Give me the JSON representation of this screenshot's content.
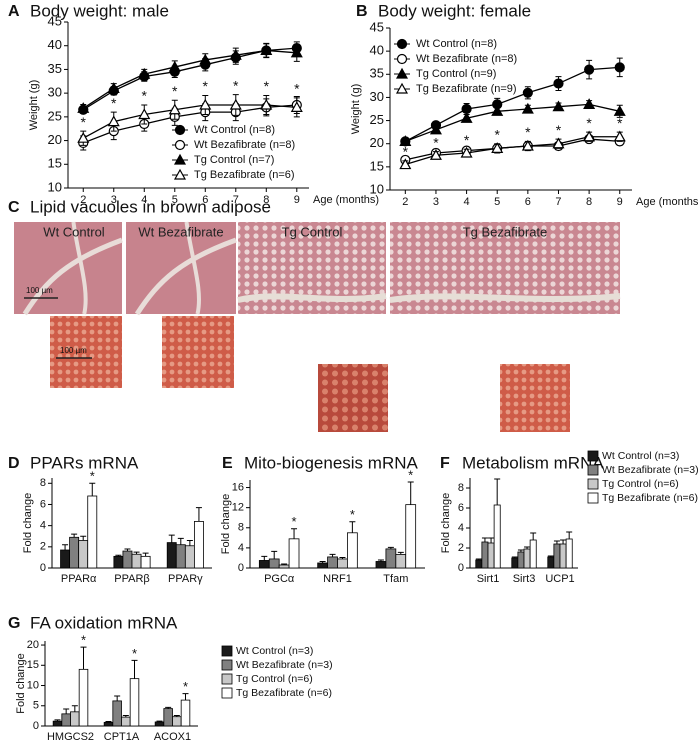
{
  "chart_data": [
    {
      "label": "A",
      "type": "line",
      "title": "Body weight: male",
      "ylabel": "Weight (g)",
      "xlabel": "Age (months)",
      "x": [
        2,
        3,
        4,
        5,
        6,
        7,
        8,
        9
      ],
      "xlim": [
        1.5,
        9.4
      ],
      "xticks": [
        2,
        3,
        4,
        5,
        6,
        7,
        8,
        9
      ],
      "ylim": [
        10,
        45
      ],
      "yticks": [
        10,
        15,
        20,
        25,
        30,
        35,
        40,
        45
      ],
      "legend": "lower right",
      "series": [
        {
          "name": "Wt Control (n=8)",
          "color": "#000000",
          "marker": "circle",
          "filled": true,
          "values": [
            26.5,
            30.5,
            33.5,
            34.5,
            36,
            37.5,
            39,
            39.5
          ],
          "errors": [
            0.8,
            0.9,
            1,
            1.2,
            1.3,
            1.4,
            1.4,
            1.3
          ]
        },
        {
          "name": "Wt Bezafibrate (n=8)",
          "color": "#000000",
          "marker": "circle",
          "filled": false,
          "values": [
            19.5,
            22,
            23.5,
            25,
            26,
            26,
            27,
            27.5
          ],
          "errors": [
            1.5,
            1.8,
            1.5,
            1.8,
            1.8,
            1.8,
            1.8,
            1.8
          ]
        },
        {
          "name": "Tg Control (n=7)",
          "color": "#000000",
          "marker": "triangle",
          "filled": true,
          "values": [
            26.8,
            31,
            34,
            35.5,
            37,
            38,
            39,
            38.5
          ],
          "errors": [
            0.8,
            1,
            1,
            1.3,
            1.3,
            1.5,
            1.5,
            1.8
          ]
        },
        {
          "name": "Tg Bezafibrate (n=6)",
          "color": "#000000",
          "marker": "triangle",
          "filled": false,
          "values": [
            20.5,
            24,
            25.5,
            26.5,
            27.5,
            27.5,
            27.5,
            27
          ],
          "errors": [
            1.5,
            2,
            2,
            2,
            2,
            2.2,
            2,
            2
          ],
          "annotations": [
            "*",
            "*",
            "*",
            "*",
            "*",
            "*",
            "*",
            "*"
          ]
        }
      ]
    },
    {
      "label": "B",
      "type": "line",
      "title": "Body weight: female",
      "ylabel": "Weight (g)",
      "xlabel": "Age (months)",
      "x": [
        2,
        3,
        4,
        5,
        6,
        7,
        8,
        9
      ],
      "xlim": [
        1.5,
        9.4
      ],
      "xticks": [
        2,
        3,
        4,
        5,
        6,
        7,
        8,
        9
      ],
      "ylim": [
        10,
        45
      ],
      "yticks": [
        10,
        15,
        20,
        25,
        30,
        35,
        40,
        45
      ],
      "legend": "upper left",
      "series": [
        {
          "name": "Wt Control (n=8)",
          "color": "#000000",
          "marker": "circle",
          "filled": true,
          "values": [
            20.5,
            24,
            27.5,
            28.5,
            31,
            33,
            36,
            36.5
          ],
          "errors": [
            0.5,
            0.7,
            1.2,
            1.3,
            1.3,
            1.5,
            2,
            2
          ]
        },
        {
          "name": "Wt Bezafibrate (n=8)",
          "color": "#000000",
          "marker": "circle",
          "filled": false,
          "values": [
            16.5,
            18,
            18.5,
            19,
            19.5,
            19.5,
            21,
            20.5
          ],
          "errors": [
            0.8,
            0.8,
            0.8,
            0.8,
            0.8,
            0.8,
            0.8,
            0.8
          ]
        },
        {
          "name": "Tg Control (n=9)",
          "color": "#000000",
          "marker": "triangle",
          "filled": true,
          "values": [
            20.5,
            23,
            25.5,
            27,
            27.5,
            28,
            28.5,
            27
          ],
          "errors": [
            0.5,
            0.6,
            0.8,
            0.8,
            0.8,
            0.8,
            0.8,
            1.3
          ]
        },
        {
          "name": "Tg Bezafibrate (n=9)",
          "color": "#000000",
          "marker": "triangle",
          "filled": false,
          "values": [
            15.5,
            17.5,
            18,
            19,
            19.5,
            20,
            21.5,
            21.5
          ],
          "errors": [
            0.8,
            0.8,
            0.8,
            1,
            1,
            1,
            1,
            1
          ],
          "annotations": [
            "*",
            "*",
            "*",
            "*",
            "*",
            "*",
            "*",
            "*"
          ]
        }
      ]
    },
    {
      "label": "C",
      "type": "micrograph",
      "title": "Lipid vacuoles in brown adipose",
      "panels": [
        "Wt Control",
        "Wt Bezafibrate",
        "Tg Control",
        "Tg Bezafibrate"
      ],
      "scale_label": "100 µm"
    },
    {
      "label": "D",
      "type": "bar",
      "title": "PPARs mRNA",
      "ylabel": "Fold change",
      "categories": [
        "PPARα",
        "PPARβ",
        "PPARγ"
      ],
      "ylim": [
        0,
        8.5
      ],
      "yticks": [
        0,
        2,
        4,
        6,
        8
      ],
      "legend": false,
      "series": [
        {
          "name": "Wt Control (n=3)",
          "color": "#1a1a1a",
          "values": [
            1.7,
            1.1,
            2.4
          ],
          "errors": [
            0.5,
            0.1,
            0.7
          ]
        },
        {
          "name": "Wt Bezafibrate (n=3)",
          "color": "#808080",
          "values": [
            2.9,
            1.6,
            2.2
          ],
          "errors": [
            0.3,
            0.2,
            0.6
          ]
        },
        {
          "name": "Tg Control (n=6)",
          "color": "#c8c8c8",
          "values": [
            2.6,
            1.3,
            2.1
          ],
          "errors": [
            0.4,
            0.2,
            0.5
          ]
        },
        {
          "name": "Tg Bezafibrate (n=6)",
          "color": "#ffffff",
          "values": [
            6.8,
            1.1,
            4.4
          ],
          "errors": [
            1.2,
            0.3,
            1.3
          ],
          "annotations": [
            "*",
            null,
            null
          ]
        }
      ]
    },
    {
      "label": "E",
      "type": "bar",
      "title": "Mito-biogenesis mRNA",
      "ylabel": "Fold change",
      "categories": [
        "PGCα",
        "NRF1",
        "Tfam"
      ],
      "ylim": [
        0,
        17.5
      ],
      "yticks": [
        0,
        4,
        8,
        12,
        16
      ],
      "legend": false,
      "series": [
        {
          "name": "Wt Control (n=3)",
          "color": "#1a1a1a",
          "values": [
            1.5,
            1.0,
            1.3
          ],
          "errors": [
            0.8,
            0.3,
            0.3
          ]
        },
        {
          "name": "Wt Bezafibrate (n=3)",
          "color": "#808080",
          "values": [
            1.8,
            2.2,
            3.8
          ],
          "errors": [
            1.5,
            0.5,
            0.3
          ]
        },
        {
          "name": "Tg Control (n=6)",
          "color": "#c8c8c8",
          "values": [
            0.6,
            1.8,
            2.7
          ],
          "errors": [
            0.2,
            0.3,
            0.4
          ]
        },
        {
          "name": "Tg Bezafibrate (n=6)",
          "color": "#ffffff",
          "values": [
            5.8,
            7.0,
            12.6
          ],
          "errors": [
            2,
            2.2,
            4.5
          ],
          "annotations": [
            "*",
            "*",
            "*"
          ]
        }
      ]
    },
    {
      "label": "F",
      "type": "bar",
      "title": "Metabolism mRNA",
      "ylabel": "Fold change",
      "categories": [
        "Sirt1",
        "Sirt3",
        "UCP1"
      ],
      "ylim": [
        0,
        9
      ],
      "yticks": [
        0,
        2,
        4,
        6,
        8
      ],
      "legend": "right",
      "series": [
        {
          "name": "Wt Control (n=3)",
          "color": "#1a1a1a",
          "values": [
            0.8,
            1.0,
            1.1
          ],
          "errors": [
            0.1,
            0.1,
            0.1
          ]
        },
        {
          "name": "Wt Bezafibrate (n=3)",
          "color": "#808080",
          "values": [
            2.6,
            1.6,
            2.4
          ],
          "errors": [
            0.4,
            0.2,
            0.3
          ]
        },
        {
          "name": "Tg Control (n=6)",
          "color": "#c8c8c8",
          "values": [
            2.5,
            1.9,
            2.4
          ],
          "errors": [
            0.5,
            0.2,
            0.4
          ]
        },
        {
          "name": "Tg Bezafibrate (n=6)",
          "color": "#ffffff",
          "values": [
            6.3,
            2.8,
            2.9
          ],
          "errors": [
            2.6,
            0.7,
            0.7
          ]
        }
      ]
    },
    {
      "label": "G",
      "type": "bar",
      "title": "FA oxidation mRNA",
      "ylabel": "Fold change",
      "categories": [
        "HMGCS2",
        "CPT1A",
        "ACOX1"
      ],
      "ylim": [
        0,
        21
      ],
      "yticks": [
        0,
        5,
        10,
        15,
        20
      ],
      "legend": "right",
      "series": [
        {
          "name": "Wt Control (n=3)",
          "color": "#1a1a1a",
          "values": [
            1.2,
            0.9,
            1.0
          ],
          "errors": [
            0.3,
            0.2,
            0.2
          ]
        },
        {
          "name": "Wt Bezafibrate (n=3)",
          "color": "#808080",
          "values": [
            3.0,
            6.2,
            4.3
          ],
          "errors": [
            1.2,
            1.2,
            0.3
          ]
        },
        {
          "name": "Tg Control (n=6)",
          "color": "#c8c8c8",
          "values": [
            3.5,
            2.2,
            2.3
          ],
          "errors": [
            1.5,
            0.4,
            0.3
          ]
        },
        {
          "name": "Tg Bezafibrate (n=6)",
          "color": "#ffffff",
          "values": [
            14,
            11.7,
            6.4
          ],
          "errors": [
            5.5,
            4.5,
            1.6
          ],
          "annotations": [
            "*",
            "*",
            "*"
          ]
        }
      ]
    }
  ]
}
